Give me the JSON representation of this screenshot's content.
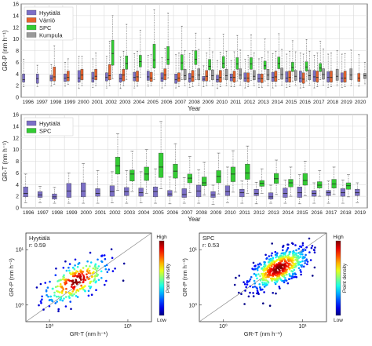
{
  "colors": {
    "hyytiala": "#7b6fc6",
    "varrio": "#e5612b",
    "spc": "#33cc33",
    "kumpula": "#999999",
    "gridline": "#d9d9d9",
    "axis": "#333333"
  },
  "chart_data": [
    {
      "type": "box",
      "id": "top",
      "ylabel": "GR-P (nm h⁻¹)",
      "xlabel": "Year",
      "ylim": [
        0,
        16
      ],
      "yticks": [
        "0",
        "2",
        "4",
        "6",
        "8",
        "10",
        "12",
        "14",
        "16"
      ],
      "categories": [
        "1996",
        "1997",
        "1998",
        "1999",
        "2000",
        "2001",
        "2002",
        "2003",
        "2004",
        "2005",
        "2006",
        "2007",
        "2008",
        "2009",
        "2010",
        "2011",
        "2012",
        "2013",
        "2014",
        "2015",
        "2016",
        "2017",
        "2018",
        "2019",
        "2020"
      ],
      "legend": [
        "Hyytiälä",
        "Värriö",
        "SPC",
        "Kumpula"
      ],
      "legend_position": "top-left",
      "series": [
        {
          "name": "Hyytiälä",
          "color": "hyytiala",
          "boxes": [
            [
              1.8,
              2.6,
              3.0,
              4.0,
              6.5
            ],
            [
              1.8,
              2.4,
              3.2,
              4.0,
              5.5
            ],
            [
              1.9,
              2.8,
              3.3,
              3.8,
              5.6
            ],
            [
              1.9,
              2.7,
              3.3,
              4.0,
              6.0
            ],
            [
              1.5,
              2.6,
              3.3,
              4.6,
              7.0
            ],
            [
              1.7,
              2.6,
              3.3,
              4.3,
              6.6
            ],
            [
              1.6,
              2.8,
              3.4,
              4.2,
              7.0
            ],
            [
              1.5,
              2.6,
              3.2,
              4.0,
              6.9
            ],
            [
              1.6,
              2.8,
              3.4,
              4.3,
              7.5
            ],
            [
              1.9,
              2.9,
              3.5,
              4.5,
              7.2
            ],
            [
              1.6,
              2.7,
              3.3,
              4.2,
              6.8
            ],
            [
              1.6,
              2.4,
              3.0,
              4.0,
              7.3
            ],
            [
              1.7,
              2.6,
              3.2,
              4.1,
              7.5
            ],
            [
              1.8,
              2.8,
              3.1,
              3.6,
              5.4
            ],
            [
              1.5,
              2.6,
              3.0,
              3.8,
              6.3
            ],
            [
              1.8,
              2.8,
              3.4,
              4.0,
              6.3
            ],
            [
              1.6,
              2.7,
              3.3,
              4.2,
              6.5
            ],
            [
              1.7,
              2.6,
              3.2,
              4.0,
              6.6
            ],
            [
              1.6,
              2.7,
              3.4,
              4.3,
              7.5
            ],
            [
              1.7,
              2.6,
              3.3,
              4.4,
              7.4
            ],
            [
              1.6,
              2.6,
              3.3,
              4.5,
              7.6
            ],
            [
              1.6,
              2.7,
              3.5,
              4.6,
              7.2
            ],
            [
              1.7,
              2.6,
              3.4,
              4.4,
              7.4
            ],
            [
              1.7,
              2.6,
              3.3,
              4.2,
              7.4
            ],
            null
          ]
        },
        {
          "name": "Värriö",
          "color": "varrio",
          "boxes": [
            null,
            null,
            [
              2.2,
              2.8,
              3.5,
              5.2,
              8.8
            ],
            [
              2.2,
              2.8,
              3.4,
              4.5,
              6.6
            ],
            [
              2.0,
              3.0,
              3.8,
              4.8,
              7.0
            ],
            [
              2.0,
              3.0,
              3.6,
              4.8,
              7.6
            ],
            [
              2.0,
              3.0,
              3.7,
              5.6,
              9.6
            ],
            [
              2.0,
              2.8,
              3.8,
              4.8,
              7.9
            ],
            [
              1.9,
              2.7,
              3.5,
              4.5,
              7.9
            ],
            [
              2.0,
              2.7,
              3.3,
              4.3,
              7.3
            ],
            [
              2.0,
              3.0,
              3.8,
              4.9,
              8.4
            ],
            [
              1.8,
              2.7,
              3.3,
              4.2,
              7.6
            ],
            [
              1.8,
              2.7,
              3.5,
              4.6,
              8.0
            ],
            [
              2.0,
              2.8,
              3.6,
              4.6,
              7.6
            ],
            [
              1.8,
              2.6,
              3.4,
              4.6,
              7.7
            ],
            [
              1.8,
              2.6,
              3.4,
              4.5,
              7.8
            ],
            [
              1.8,
              2.6,
              3.3,
              4.2,
              7.2
            ],
            [
              1.7,
              2.5,
              3.2,
              4.0,
              6.8
            ],
            [
              1.9,
              2.7,
              3.5,
              4.5,
              7.9
            ],
            [
              1.8,
              2.6,
              3.4,
              4.5,
              7.9
            ],
            [
              1.7,
              2.4,
              3.1,
              4.2,
              7.4
            ],
            [
              1.8,
              2.6,
              3.4,
              4.5,
              7.6
            ],
            [
              1.8,
              2.6,
              3.4,
              4.5,
              7.6
            ],
            [
              1.8,
              2.6,
              3.3,
              4.5,
              7.5
            ],
            [
              1.9,
              2.7,
              3.3,
              4.1,
              7.3
            ]
          ]
        },
        {
          "name": "SPC",
          "color": "spc",
          "boxes": [
            null,
            null,
            null,
            null,
            null,
            null,
            [
              3.2,
              5.5,
              7.5,
              9.8,
              14.0
            ],
            [
              3.0,
              4.8,
              5.8,
              7.1,
              12.5
            ],
            [
              3.4,
              5.2,
              6.1,
              7.2,
              11.5
            ],
            [
              3.0,
              5.0,
              6.4,
              9.1,
              15.0
            ],
            [
              3.3,
              5.6,
              6.5,
              8.7,
              14.4
            ],
            [
              3.0,
              4.7,
              5.9,
              7.3,
              12.2
            ],
            [
              3.0,
              5.6,
              6.5,
              8.0,
              11.0
            ],
            [
              2.8,
              4.7,
              5.3,
              6.5,
              10.1
            ],
            [
              3.1,
              5.0,
              5.8,
              7.0,
              10.8
            ],
            [
              2.8,
              4.8,
              5.7,
              6.8,
              10.6
            ],
            [
              2.9,
              4.8,
              5.7,
              6.8,
              10.7
            ],
            [
              2.8,
              4.8,
              5.4,
              6.2,
              10.0
            ],
            [
              3.0,
              4.9,
              5.8,
              6.9,
              10.9
            ],
            [
              2.7,
              4.4,
              5.1,
              6.0,
              9.7
            ],
            [
              2.8,
              4.5,
              5.2,
              6.1,
              9.9
            ],
            [
              3.0,
              4.4,
              5.0,
              5.8,
              9.6
            ],
            null,
            null,
            null
          ]
        },
        {
          "name": "Kumpula",
          "color": "kumpula",
          "boxes": [
            null,
            null,
            null,
            null,
            null,
            null,
            null,
            null,
            null,
            null,
            null,
            [
              2.0,
              3.0,
              3.7,
              4.8,
              8.0
            ],
            [
              2.1,
              3.0,
              3.8,
              4.9,
              8.2
            ],
            [
              2.0,
              3.0,
              3.7,
              4.7,
              7.8
            ],
            [
              2.0,
              3.0,
              3.7,
              4.8,
              7.9
            ],
            [
              2.1,
              3.1,
              3.8,
              4.9,
              8.1
            ],
            [
              2.0,
              3.0,
              3.6,
              4.6,
              7.6
            ],
            [
              2.0,
              3.0,
              3.8,
              4.8,
              7.8
            ],
            [
              2.1,
              3.1,
              3.9,
              5.0,
              8.2
            ],
            [
              2.0,
              2.9,
              3.6,
              4.6,
              7.8
            ],
            [
              2.1,
              3.0,
              3.7,
              4.7,
              7.9
            ],
            [
              2.1,
              3.1,
              3.9,
              4.9,
              8.3
            ],
            [
              2.0,
              2.9,
              3.6,
              4.8,
              8.0
            ],
            [
              2.0,
              3.0,
              3.8,
              4.9,
              8.1
            ],
            [
              2.3,
              3.2,
              3.7,
              4.1,
              6.0
            ]
          ]
        }
      ]
    },
    {
      "type": "box",
      "id": "mid",
      "ylabel": "GR-T (nm h⁻¹)",
      "xlabel": "Year",
      "ylim": [
        0,
        16
      ],
      "yticks": [
        "0",
        "2",
        "4",
        "6",
        "8",
        "10",
        "12",
        "14",
        "16"
      ],
      "categories": [
        "1996",
        "1997",
        "1998",
        "1999",
        "2000",
        "2001",
        "2002",
        "2003",
        "2004",
        "2005",
        "2006",
        "2007",
        "2008",
        "2009",
        "2010",
        "2011",
        "2012",
        "2013",
        "2014",
        "2015",
        "2016",
        "2017",
        "2018",
        "2019"
      ],
      "legend": [
        "Hyytiälä",
        "SPC"
      ],
      "legend_position": "top-left",
      "series": [
        {
          "name": "Hyytiälä",
          "color": "hyytiala",
          "boxes": [
            [
              0.9,
              1.9,
              2.5,
              3.6,
              5.8
            ],
            [
              0.9,
              1.8,
              2.2,
              2.8,
              3.7
            ],
            [
              0.8,
              1.5,
              1.9,
              2.4,
              3.5
            ],
            [
              0.8,
              1.8,
              2.9,
              4.2,
              6.0
            ],
            [
              0.8,
              1.9,
              2.9,
              4.3,
              7.6
            ],
            [
              0.8,
              2.0,
              2.5,
              3.3,
              6.4
            ],
            [
              0.9,
              2.0,
              2.8,
              3.8,
              6.2
            ],
            [
              0.8,
              2.1,
              2.8,
              3.5,
              6.4
            ],
            [
              0.9,
              2.0,
              2.6,
              3.4,
              6.2
            ],
            [
              0.8,
              1.9,
              2.8,
              3.6,
              6.7
            ],
            [
              0.7,
              2.0,
              2.4,
              3.0,
              5.3
            ],
            [
              0.8,
              1.8,
              2.3,
              3.3,
              5.2
            ],
            [
              0.8,
              1.9,
              2.9,
              3.9,
              6.5
            ],
            [
              0.6,
              1.8,
              2.2,
              2.8,
              3.9
            ],
            [
              0.9,
              2.1,
              2.8,
              3.8,
              7.0
            ],
            [
              0.8,
              1.9,
              2.6,
              3.2,
              4.6
            ],
            [
              0.7,
              2.1,
              2.5,
              3.2,
              4.4
            ],
            [
              0.8,
              1.5,
              1.9,
              2.6,
              3.9
            ],
            [
              0.8,
              1.8,
              2.5,
              3.4,
              4.8
            ],
            [
              0.7,
              1.8,
              2.6,
              3.6,
              5.7
            ],
            [
              0.8,
              2.0,
              2.5,
              3.0,
              4.3
            ],
            [
              0.8,
              2.1,
              2.6,
              3.0,
              4.6
            ],
            [
              0.8,
              2.0,
              2.6,
              3.3,
              4.8
            ],
            [
              0.9,
              2.1,
              2.6,
              3.2,
              4.3
            ]
          ]
        },
        {
          "name": "SPC",
          "color": "spc",
          "boxes": [
            null,
            null,
            null,
            null,
            null,
            null,
            [
              3.0,
              5.8,
              7.2,
              8.7,
              12.7
            ],
            [
              2.8,
              4.6,
              5.8,
              6.5,
              9.7
            ],
            [
              2.5,
              4.7,
              5.8,
              7.0,
              10.0
            ],
            [
              3.3,
              5.2,
              7.0,
              9.4,
              14.8
            ],
            [
              2.7,
              5.1,
              6.3,
              7.5,
              11.0
            ],
            [
              2.6,
              4.3,
              5.1,
              5.8,
              8.8
            ],
            [
              2.2,
              3.8,
              4.3,
              5.3,
              7.8
            ],
            [
              2.4,
              4.3,
              5.4,
              6.4,
              9.4
            ],
            [
              2.7,
              4.5,
              5.8,
              7.0,
              9.8
            ],
            [
              2.5,
              4.9,
              6.0,
              7.5,
              10.6
            ],
            [
              2.5,
              3.7,
              4.2,
              4.7,
              6.7
            ],
            [
              2.3,
              4.2,
              5.0,
              5.9,
              8.2
            ],
            [
              2.0,
              3.6,
              4.3,
              4.9,
              7.0
            ],
            [
              2.1,
              3.9,
              4.7,
              5.9,
              8.0
            ],
            [
              2.0,
              3.4,
              3.9,
              4.5,
              6.4
            ],
            [
              2.3,
              3.4,
              4.1,
              4.9,
              7.0
            ],
            [
              1.9,
              3.2,
              3.8,
              4.3,
              5.7
            ],
            null
          ]
        }
      ]
    },
    {
      "type": "scatter",
      "id": "scatter-hyytiala",
      "panel_label": "Hyytiälä",
      "r_label": "r: 0.59",
      "ylabel": "GR-P (nm h⁻¹)",
      "xlabel": "GR-T (nm h⁻¹)",
      "log_scale": true,
      "xlim": [
        0.5,
        20
      ],
      "ylim": [
        0.5,
        20
      ],
      "xticks": [
        "10⁰",
        "10¹"
      ],
      "yticks": [
        "10⁰",
        "10¹"
      ],
      "center": [
        2.2,
        2.7
      ],
      "n_points": 260,
      "spread_log10": 0.22,
      "colorbar_title": "Point density",
      "colorbar_top": "High",
      "colorbar_bottom": "Low",
      "identity_line": true
    },
    {
      "type": "scatter",
      "id": "scatter-spc",
      "panel_label": "SPC",
      "r_label": "r: 0.53",
      "ylabel": "GR-P (nm h⁻¹)",
      "xlabel": "GR-T (nm h⁻¹)",
      "log_scale": true,
      "xlim": [
        0.5,
        20
      ],
      "ylim": [
        0.5,
        20
      ],
      "xticks": [
        "10⁰",
        "10¹"
      ],
      "yticks": [
        "10⁰",
        "10¹"
      ],
      "center": [
        5.0,
        4.6
      ],
      "n_points": 560,
      "spread_log10": 0.19,
      "colorbar_title": "Point density",
      "colorbar_top": "High",
      "colorbar_bottom": "Low",
      "identity_line": true
    }
  ]
}
